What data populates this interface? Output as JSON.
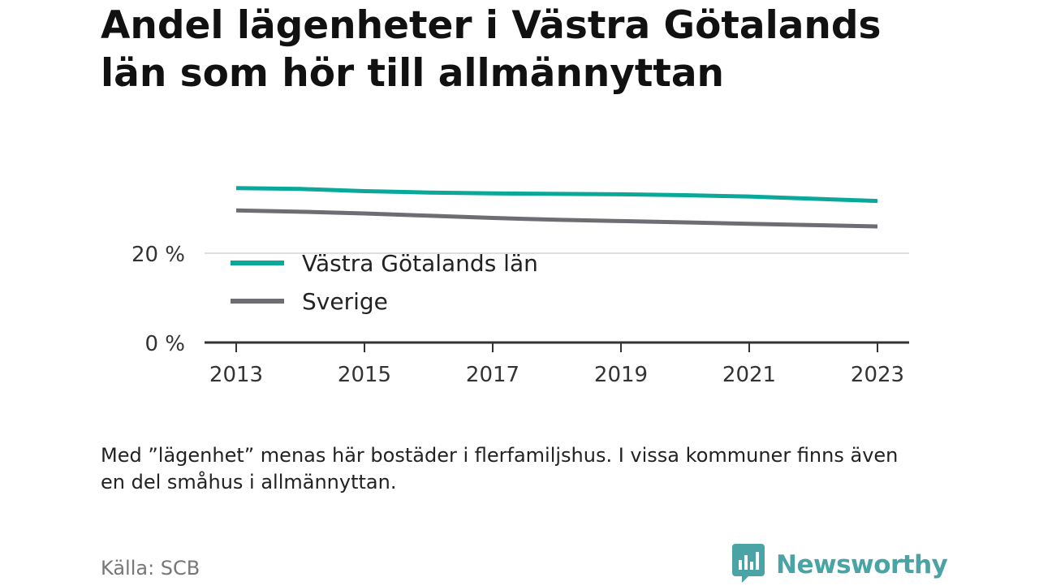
{
  "title": "Andel lägenheter i Västra Götalands län som hör till allmännyttan",
  "note": "Med ”lägenhet” menas här bostäder i flerfamiljshus. I vissa kommuner finns även en del småhus i allmännyttan.",
  "source": "Källa: SCB",
  "brand": {
    "name": "Newsworthy",
    "color": "#4aa3a4",
    "icon": "newsworthy-logo-icon"
  },
  "colors": {
    "axis": "#333333",
    "grid": "#dddddd",
    "tick_text": "#333333"
  },
  "chart_data": {
    "type": "line",
    "title": "Andel lägenheter i Västra Götalands län som hör till allmännyttan",
    "xlabel": "",
    "ylabel": "",
    "x": [
      2013,
      2014,
      2015,
      2016,
      2017,
      2018,
      2019,
      2020,
      2021,
      2022,
      2023
    ],
    "series": [
      {
        "name": "Västra Götalands län",
        "color": "#0aa89b",
        "values": [
          34.6,
          34.4,
          33.9,
          33.6,
          33.4,
          33.3,
          33.2,
          33.0,
          32.7,
          32.2,
          31.7
        ]
      },
      {
        "name": "Sverige",
        "color": "#6e6d73",
        "values": [
          29.6,
          29.3,
          28.9,
          28.4,
          27.9,
          27.5,
          27.2,
          26.9,
          26.6,
          26.3,
          26.0
        ]
      }
    ],
    "ylim": [
      0,
      40
    ],
    "yticks": [
      0,
      20
    ],
    "ytick_labels": [
      "0 %",
      "20 %"
    ],
    "xticks": [
      2013,
      2015,
      2017,
      2019,
      2021,
      2023
    ],
    "xtick_labels": [
      "2013",
      "2015",
      "2017",
      "2019",
      "2021",
      "2023"
    ],
    "grid": true,
    "legend_position": "inside-bottom-left"
  }
}
